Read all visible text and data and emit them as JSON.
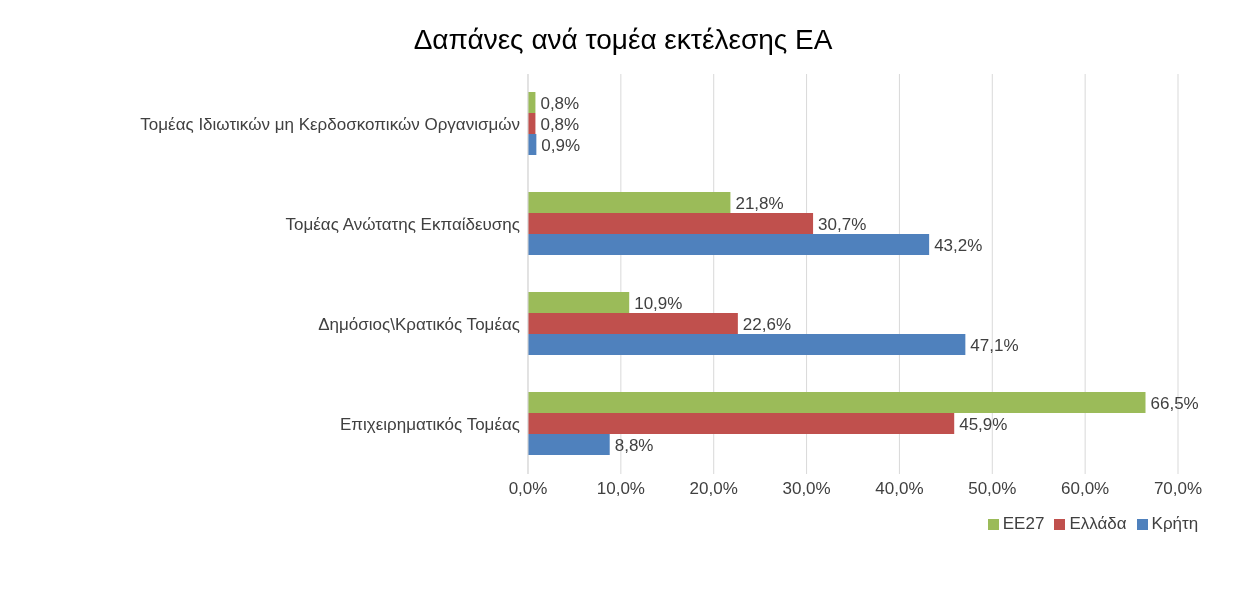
{
  "chart_data": {
    "type": "bar",
    "orientation": "horizontal",
    "title": "Δαπάνες ανά τομέα εκτέλεσης ΕΑ",
    "categories": [
      "Τομέας Ιδιωτικών μη Κερδοσκοπικών Οργανισμών",
      "Τομέας Ανώτατης Εκπαίδευσης",
      "Δημόσιος\\Κρατικός Τομέας",
      "Επιχειρηματικός Τομέας"
    ],
    "series": [
      {
        "name": "ΕΕ27",
        "color": "#9bbb59",
        "values": [
          0.8,
          21.8,
          10.9,
          66.5
        ],
        "value_labels": [
          "0,8%",
          "21,8%",
          "10,9%",
          "66,5%"
        ]
      },
      {
        "name": "Ελλάδα",
        "color": "#c0504d",
        "values": [
          0.8,
          30.7,
          22.6,
          45.9
        ],
        "value_labels": [
          "0,8%",
          "30,7%",
          "22,6%",
          "45,9%"
        ]
      },
      {
        "name": "Κρήτη",
        "color": "#4f81bd",
        "values": [
          0.9,
          43.2,
          47.1,
          8.8
        ],
        "value_labels": [
          "0,9%",
          "43,2%",
          "47,1%",
          "8,8%"
        ]
      }
    ],
    "xlim": [
      0,
      70
    ],
    "xticks": [
      {
        "value": 0,
        "label": "0,0%"
      },
      {
        "value": 10,
        "label": "10,0%"
      },
      {
        "value": 20,
        "label": "20,0%"
      },
      {
        "value": 30,
        "label": "30,0%"
      },
      {
        "value": 40,
        "label": "40,0%"
      },
      {
        "value": 50,
        "label": "50,0%"
      },
      {
        "value": 60,
        "label": "60,0%"
      },
      {
        "value": 70,
        "label": "70,0%"
      }
    ],
    "grid": "x",
    "legend": "bottom"
  }
}
